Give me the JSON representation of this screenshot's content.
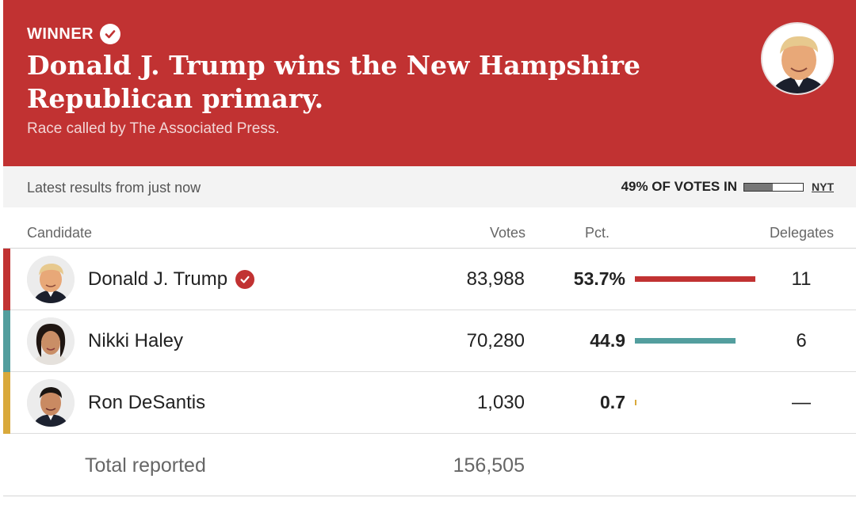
{
  "banner": {
    "winner_label": "WINNER",
    "headline": "Donald J. Trump wins the New Hampshire Republican primary.",
    "subline": "Race called by The Associated Press.",
    "color": "#c13232"
  },
  "status": {
    "latest": "Latest results from just now",
    "votes_in": "49% OF VOTES IN",
    "votes_in_fraction": 0.49,
    "source_link": "NYT"
  },
  "table": {
    "headers": {
      "candidate": "Candidate",
      "votes": "Votes",
      "pct": "Pct.",
      "delegates": "Delegates"
    },
    "rows": [
      {
        "name": "Donald J. Trump",
        "votes": "83,988",
        "pct": "53.7%",
        "pct_value": 53.7,
        "delegates": "11",
        "color": "#c13232",
        "winner": true
      },
      {
        "name": "Nikki Haley",
        "votes": "70,280",
        "pct": "44.9",
        "pct_value": 44.9,
        "delegates": "6",
        "color": "#539e9e",
        "winner": false
      },
      {
        "name": "Ron DeSantis",
        "votes": "1,030",
        "pct": "0.7",
        "pct_value": 0.7,
        "delegates": "—",
        "color": "#d9a93b",
        "winner": false
      }
    ],
    "total": {
      "label": "Total reported",
      "votes": "156,505"
    }
  }
}
